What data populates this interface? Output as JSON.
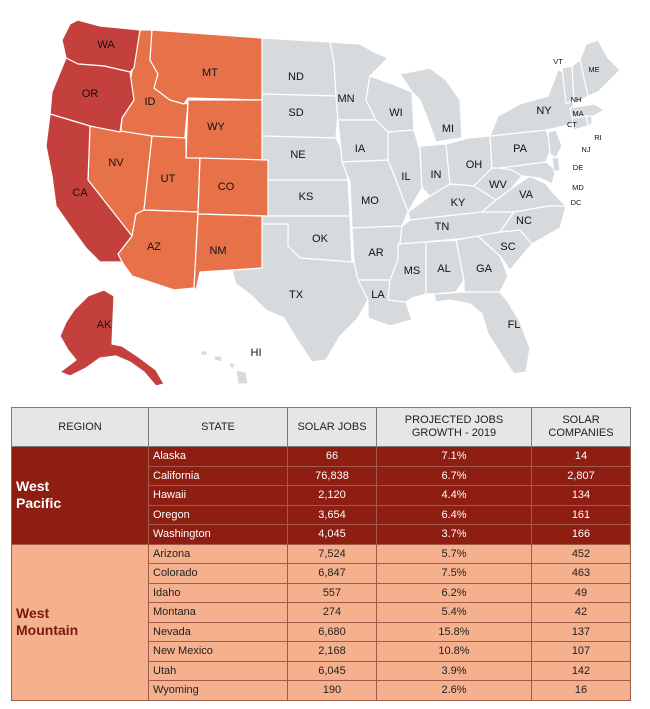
{
  "map": {
    "colors": {
      "west_pacific": "#c4403c",
      "west_mountain": "#e7724a",
      "other": "#d6dadd"
    },
    "labels": {
      "WA": "WA",
      "OR": "OR",
      "CA": "CA",
      "ID": "ID",
      "MT": "MT",
      "WY": "WY",
      "NV": "NV",
      "UT": "UT",
      "CO": "CO",
      "AZ": "AZ",
      "NM": "NM",
      "AK": "AK",
      "HI": "HI",
      "ND": "ND",
      "SD": "SD",
      "NE": "NE",
      "KS": "KS",
      "OK": "OK",
      "TX": "TX",
      "MN": "MN",
      "IA": "IA",
      "MO": "MO",
      "AR": "AR",
      "LA": "LA",
      "WI": "WI",
      "IL": "IL",
      "MI": "MI",
      "IN": "IN",
      "OH": "OH",
      "KY": "KY",
      "TN": "TN",
      "MS": "MS",
      "AL": "AL",
      "GA": "GA",
      "FL": "FL",
      "SC": "SC",
      "NC": "NC",
      "VA": "VA",
      "WV": "WV",
      "PA": "PA",
      "NY": "NY",
      "VT": "VT",
      "NH": "NH",
      "ME": "ME",
      "MA": "MA",
      "CT": "CT",
      "RI": "RI",
      "NJ": "NJ",
      "DE": "DE",
      "MD": "MD",
      "DC": "DC"
    }
  },
  "table": {
    "headers": [
      "REGION",
      "STATE",
      "SOLAR JOBS",
      "PROJECTED JOBS GROWTH - 2019",
      "SOLAR COMPANIES"
    ],
    "headers_lines": [
      [
        "REGION"
      ],
      [
        "STATE"
      ],
      [
        "SOLAR JOBS"
      ],
      [
        "PROJECTED JOBS",
        "GROWTH - 2019"
      ],
      [
        "SOLAR",
        "COMPANIES"
      ]
    ],
    "regions": [
      {
        "name": "West Pacific",
        "name_lines": [
          "West",
          "Pacific"
        ],
        "rows": [
          {
            "state": "Alaska",
            "jobs": "66",
            "growth": "7.1%",
            "companies": "14"
          },
          {
            "state": "California",
            "jobs": "76,838",
            "growth": "6.7%",
            "companies": "2,807"
          },
          {
            "state": "Hawaii",
            "jobs": "2,120",
            "growth": "4.4%",
            "companies": "134"
          },
          {
            "state": "Oregon",
            "jobs": "3,654",
            "growth": "6.4%",
            "companies": "161"
          },
          {
            "state": "Washington",
            "jobs": "4,045",
            "growth": "3.7%",
            "companies": "166"
          }
        ]
      },
      {
        "name": "West Mountain",
        "name_lines": [
          "West",
          "Mountain"
        ],
        "rows": [
          {
            "state": "Arizona",
            "jobs": "7,524",
            "growth": "5.7%",
            "companies": "452"
          },
          {
            "state": "Colorado",
            "jobs": "6,847",
            "growth": "7.5%",
            "companies": "463"
          },
          {
            "state": "Idaho",
            "jobs": "557",
            "growth": "6.2%",
            "companies": "49"
          },
          {
            "state": "Montana",
            "jobs": "274",
            "growth": "5.4%",
            "companies": "42"
          },
          {
            "state": "Nevada",
            "jobs": "6,680",
            "growth": "15.8%",
            "companies": "137"
          },
          {
            "state": "New Mexico",
            "jobs": "2,168",
            "growth": "10.8%",
            "companies": "107"
          },
          {
            "state": "Utah",
            "jobs": "6,045",
            "growth": "3.9%",
            "companies": "142"
          },
          {
            "state": "Wyoming",
            "jobs": "190",
            "growth": "2.6%",
            "companies": "16"
          }
        ]
      }
    ]
  }
}
